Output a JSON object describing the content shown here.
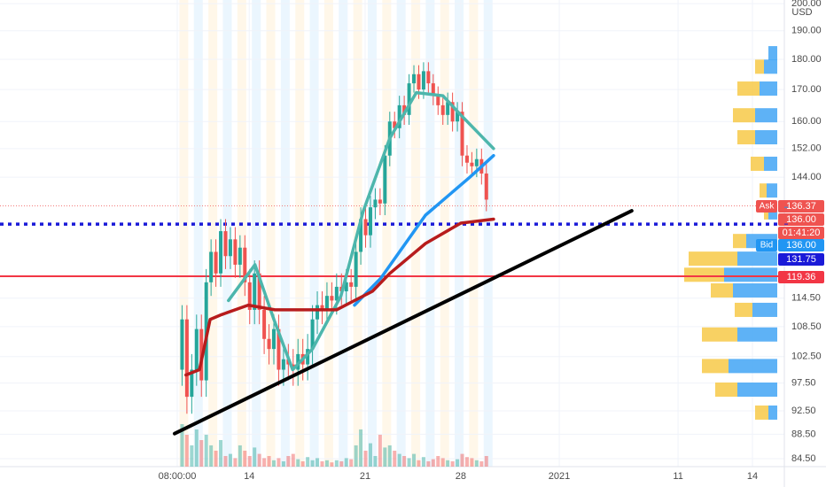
{
  "chart_data": {
    "type": "candlestick",
    "currency": "USD",
    "log_scale": true,
    "grid": true,
    "up_color": "#26a69a",
    "down_color": "#ef5350",
    "xlim": [
      -36.7,
      125.7
    ],
    "xticks": [
      {
        "value": 0,
        "label": "08:00:00"
      },
      {
        "value": 14.9,
        "label": "14"
      },
      {
        "value": 38.9,
        "label": "21"
      },
      {
        "value": 58.7,
        "label": "28"
      },
      {
        "value": 79.1,
        "label": "2021"
      },
      {
        "value": 103.7,
        "label": "11"
      },
      {
        "value": 119.1,
        "label": "14"
      }
    ],
    "ylim": [
      83.23,
      201.4
    ],
    "yticks": [
      {
        "value": 84.5,
        "label": "84.50"
      },
      {
        "value": 88.5,
        "label": "88.50"
      },
      {
        "value": 92.5,
        "label": "92.50"
      },
      {
        "value": 97.5,
        "label": "97.50"
      },
      {
        "value": 102.5,
        "label": "102.50"
      },
      {
        "value": 108.5,
        "label": "108.50"
      },
      {
        "value": 114.5,
        "label": "114.50"
      },
      {
        "value": 144,
        "label": "144.00"
      },
      {
        "value": 152,
        "label": "152.00"
      },
      {
        "value": 160,
        "label": "160.00"
      },
      {
        "value": 170,
        "label": "170.00"
      },
      {
        "value": 180,
        "label": "180.00"
      },
      {
        "value": 190,
        "label": "190.00"
      },
      {
        "value": 200,
        "label": "200.00"
      }
    ],
    "x": [
      1,
      2,
      3,
      4,
      5,
      6,
      7,
      8,
      9,
      10,
      11,
      12,
      13,
      14,
      15,
      16,
      17,
      18,
      19,
      20,
      21,
      22,
      23,
      24,
      25,
      26,
      27,
      28,
      29,
      30,
      31,
      32,
      33,
      34,
      35,
      36,
      37,
      38,
      39,
      40,
      41,
      42,
      43,
      44,
      45,
      46,
      47,
      48,
      49,
      50,
      51,
      52,
      53,
      54,
      55,
      56,
      57,
      58,
      59,
      60,
      61,
      62,
      63,
      64
    ],
    "open": [
      100,
      110,
      95,
      100,
      108,
      98,
      118,
      125,
      120,
      130,
      124,
      128,
      122,
      126,
      118,
      112,
      120,
      112,
      106,
      104,
      108,
      100,
      102,
      101,
      100,
      103,
      101,
      104,
      110,
      113,
      112,
      115,
      114,
      117,
      116,
      118,
      117,
      125,
      133,
      129,
      136,
      138,
      137,
      150,
      160,
      158,
      165,
      162,
      172,
      175,
      170,
      176,
      172,
      168,
      165,
      162,
      166,
      160,
      163,
      150,
      148,
      147,
      149,
      145
    ],
    "high": [
      113,
      113,
      103,
      111,
      111,
      121,
      128,
      128,
      133,
      133,
      131,
      131,
      129,
      129,
      121,
      123,
      123,
      115,
      109,
      111,
      111,
      105,
      105,
      104,
      106,
      106,
      107,
      113,
      116,
      116,
      118,
      118,
      120,
      120,
      121,
      121,
      128,
      136,
      136,
      139,
      141,
      141,
      153,
      163,
      163,
      168,
      168,
      175,
      178,
      178,
      179,
      179,
      175,
      171,
      168,
      169,
      169,
      166,
      166,
      153,
      151,
      152,
      152,
      148
    ],
    "low": [
      97,
      92,
      92,
      97,
      95,
      95,
      115,
      117,
      117,
      121,
      121,
      119,
      119,
      115,
      109,
      109,
      109,
      103,
      101,
      101,
      97,
      97,
      98,
      97,
      97,
      98,
      98,
      101,
      107,
      109,
      109,
      111,
      111,
      113,
      113,
      114,
      114,
      122,
      126,
      126,
      133,
      134,
      134,
      147,
      155,
      155,
      159,
      159,
      169,
      167,
      167,
      169,
      165,
      162,
      159,
      159,
      157,
      157,
      147,
      145,
      144,
      144,
      142,
      135
    ],
    "close": [
      110,
      95,
      100,
      108,
      98,
      118,
      125,
      120,
      130,
      124,
      128,
      122,
      126,
      118,
      112,
      120,
      112,
      106,
      104,
      108,
      100,
      102,
      101,
      100,
      103,
      101,
      104,
      110,
      113,
      112,
      115,
      114,
      117,
      116,
      118,
      117,
      125,
      133,
      129,
      136,
      138,
      137,
      150,
      160,
      158,
      165,
      162,
      172,
      175,
      170,
      176,
      172,
      168,
      165,
      162,
      166,
      160,
      163,
      150,
      148,
      147,
      149,
      145,
      138
    ],
    "volume": [
      40,
      30,
      20,
      35,
      25,
      30,
      20,
      15,
      25,
      10,
      12,
      8,
      20,
      15,
      10,
      18,
      12,
      8,
      10,
      6,
      8,
      5,
      10,
      12,
      7,
      5,
      9,
      6,
      8,
      5,
      6,
      4,
      6,
      5,
      8,
      7,
      20,
      35,
      15,
      22,
      10,
      30,
      18,
      20,
      15,
      12,
      10,
      8,
      12,
      6,
      9,
      5,
      7,
      10,
      8,
      6,
      5,
      7,
      12,
      9,
      8,
      6,
      5,
      10
    ],
    "lines": [
      {
        "color": "#4db6ac",
        "x": [
          10.6,
          16.1,
          20,
          23.9,
          28,
          33.9,
          38.5,
          44,
          49.5,
          55,
          58.7,
          65.5
        ],
        "values": [
          114,
          122,
          110,
          100,
          104,
          115,
          135,
          155,
          169,
          168,
          162,
          152
        ]
      },
      {
        "color": "#2196f3",
        "x": [
          36.7,
          42.2,
          51.4,
          60.6,
          65.5
        ],
        "values": [
          113,
          119,
          134,
          144,
          150
        ]
      },
      {
        "color": "#b71c1c",
        "x": [
          1.8,
          4.6,
          6.8,
          9.2,
          14.7,
          20.2,
          33,
          40.4,
          44,
          51.4,
          58.7,
          65.5
        ],
        "values": [
          99,
          100,
          110,
          111,
          113,
          112,
          112,
          116,
          120,
          127,
          132,
          133
        ]
      },
      {
        "color": "#000000",
        "x": [
          -0.55,
          94.1
        ],
        "values": [
          88.6,
          135.1
        ]
      }
    ],
    "volume_profile": {
      "colors": [
        "#f7c948",
        "#42a5f5"
      ],
      "price": [
        182.1,
        177.5,
        170.3,
        161.9,
        155.3,
        147.7,
        140.4,
        134.7,
        127.6,
        123.4,
        119.7,
        116.2,
        112,
        106.9,
        100.7,
        96.3,
        92.2
      ],
      "buy": [
        0,
        10,
        25,
        25,
        20,
        15,
        8,
        5,
        15,
        55,
        45,
        25,
        20,
        40,
        30,
        25,
        15
      ],
      "sell": [
        10,
        15,
        20,
        25,
        25,
        15,
        12,
        10,
        35,
        45,
        60,
        50,
        28,
        45,
        55,
        45,
        10
      ]
    },
    "price_tags": [
      {
        "tag": "Ask",
        "value": 136.37,
        "label": "136.37",
        "color": "#ef5350",
        "line": "thin"
      },
      {
        "value": 136,
        "label": "136.00",
        "color": "#ef5350"
      },
      {
        "label": "01:41:20",
        "color": "#ef5350"
      },
      {
        "tag": "Bid",
        "value": 136,
        "label": "136.00",
        "color": "#2196f3"
      },
      {
        "value": 131.75,
        "label": "131.75",
        "color": "#1a1ad8",
        "line": "dotted"
      },
      {
        "value": 119.36,
        "label": "119.36",
        "color": "#f23645",
        "line": "solid"
      }
    ]
  }
}
